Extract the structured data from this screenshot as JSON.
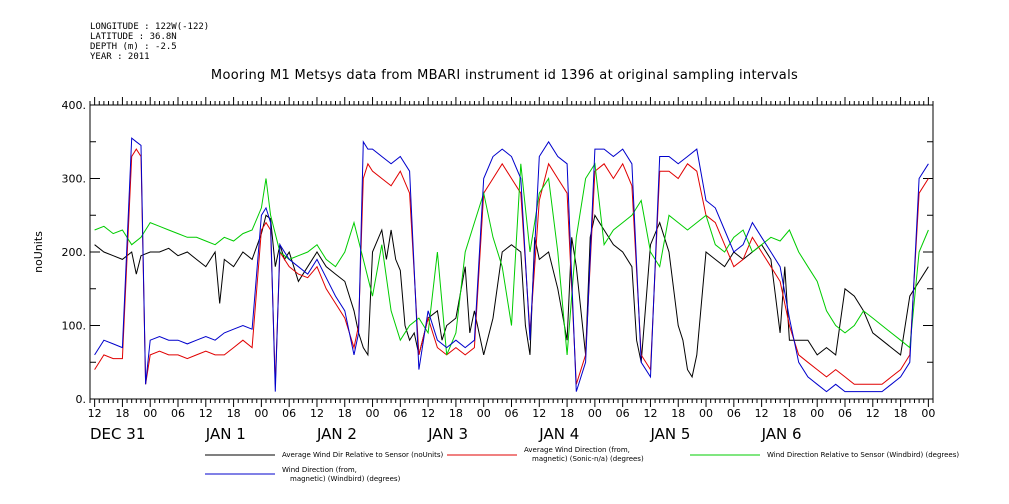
{
  "header": {
    "longitude": "LONGITUDE : 122W(-122)",
    "latitude": "LATITUDE : 36.8N",
    "depth": "DEPTH (m) : -2.5",
    "year": "YEAR : 2011"
  },
  "chart_data": {
    "type": "line",
    "title": "Mooring M1 Metsys data from MBARI instrument id 1396 at original sampling intervals",
    "ylabel": "noUnits",
    "ylim": [
      0,
      400
    ],
    "yticks": [
      0,
      100,
      200,
      300,
      400
    ],
    "ytick_labels": [
      "0.",
      "100.",
      "200.",
      "300.",
      "400."
    ],
    "xlim": [
      11,
      193
    ],
    "xticks": [
      12,
      18,
      24,
      30,
      36,
      42,
      48,
      54,
      60,
      66,
      72,
      78,
      84,
      90,
      96,
      102,
      108,
      114,
      120,
      126,
      132,
      138,
      144,
      150,
      156,
      162,
      168,
      174,
      180,
      186,
      192
    ],
    "xtick_labels": [
      "12",
      "18",
      "00",
      "06",
      "12",
      "18",
      "00",
      "06",
      "12",
      "18",
      "00",
      "06",
      "12",
      "18",
      "00",
      "06",
      "12",
      "18",
      "00",
      "06",
      "12",
      "18",
      "00",
      "06",
      "12",
      "18",
      "00",
      "06",
      "12",
      "18",
      "00"
    ],
    "date_labels": [
      {
        "x": 11,
        "text": "DEC 31"
      },
      {
        "x": 36,
        "text": "JAN  1"
      },
      {
        "x": 60,
        "text": "JAN  2"
      },
      {
        "x": 84,
        "text": "JAN  3"
      },
      {
        "x": 108,
        "text": "JAN  4"
      },
      {
        "x": 132,
        "text": "JAN  5"
      },
      {
        "x": 156,
        "text": "JAN  6"
      }
    ],
    "x_units": "hours since DEC 31 00:00",
    "series": [
      {
        "name": "Average Wind Dir Relative to Sensor (noUnits)",
        "color": "#000000",
        "x": [
          12,
          14,
          16,
          18,
          20,
          21,
          22,
          24,
          26,
          28,
          30,
          32,
          34,
          36,
          38,
          39,
          40,
          42,
          44,
          46,
          48,
          49,
          50,
          51,
          52,
          53,
          54,
          56,
          58,
          60,
          62,
          64,
          66,
          68,
          69,
          70,
          71,
          72,
          74,
          75,
          76,
          77,
          78,
          79,
          80,
          81,
          82,
          84,
          86,
          87,
          88,
          90,
          92,
          93,
          94,
          96,
          98,
          100,
          102,
          104,
          105,
          106,
          107,
          108,
          110,
          112,
          114,
          115,
          116,
          118,
          119,
          120,
          122,
          124,
          126,
          128,
          129,
          130,
          132,
          134,
          136,
          138,
          139,
          140,
          141,
          142,
          144,
          146,
          148,
          150,
          152,
          154,
          156,
          158,
          159,
          160,
          161,
          162,
          164,
          166,
          168,
          170,
          172,
          174,
          176,
          178,
          180,
          182,
          184,
          186,
          188,
          190,
          192
        ],
        "y": [
          210,
          200,
          195,
          190,
          200,
          170,
          195,
          200,
          200,
          205,
          195,
          200,
          190,
          180,
          200,
          130,
          190,
          180,
          200,
          190,
          225,
          250,
          245,
          180,
          210,
          190,
          200,
          160,
          180,
          200,
          180,
          170,
          160,
          120,
          90,
          70,
          60,
          200,
          230,
          190,
          230,
          190,
          175,
          100,
          80,
          90,
          60,
          110,
          120,
          80,
          100,
          110,
          180,
          90,
          120,
          60,
          110,
          200,
          210,
          200,
          100,
          60,
          220,
          190,
          200,
          150,
          80,
          220,
          180,
          60,
          220,
          250,
          230,
          210,
          200,
          180,
          80,
          50,
          210,
          240,
          200,
          100,
          80,
          40,
          30,
          60,
          200,
          190,
          180,
          200,
          190,
          200,
          210,
          190,
          140,
          90,
          180,
          80,
          80,
          80,
          60,
          70,
          60,
          150,
          140,
          120,
          90,
          80,
          70,
          60,
          140,
          160,
          180
        ]
      },
      {
        "name": "Average Wind Direction (from, magnetic) (Sonic-n/a) (degrees)",
        "color": "#e00000",
        "x": [
          12,
          14,
          16,
          18,
          20,
          21,
          22,
          23,
          24,
          26,
          28,
          30,
          32,
          34,
          36,
          38,
          40,
          42,
          44,
          46,
          48,
          49,
          50,
          51,
          52,
          53,
          54,
          56,
          58,
          60,
          62,
          64,
          66,
          68,
          69,
          70,
          71,
          72,
          74,
          76,
          78,
          80,
          82,
          84,
          86,
          88,
          90,
          92,
          94,
          96,
          98,
          100,
          102,
          104,
          106,
          108,
          110,
          112,
          114,
          116,
          118,
          120,
          122,
          124,
          126,
          128,
          130,
          132,
          134,
          136,
          138,
          140,
          142,
          144,
          146,
          148,
          150,
          152,
          154,
          156,
          158,
          160,
          162,
          164,
          166,
          168,
          170,
          172,
          174,
          176,
          178,
          180,
          182,
          184,
          186,
          188,
          190,
          192
        ],
        "y": [
          40,
          60,
          55,
          55,
          330,
          340,
          330,
          20,
          60,
          65,
          60,
          60,
          55,
          60,
          65,
          60,
          60,
          70,
          80,
          70,
          230,
          240,
          230,
          20,
          200,
          190,
          180,
          170,
          165,
          180,
          150,
          130,
          110,
          70,
          100,
          300,
          320,
          310,
          300,
          290,
          310,
          280,
          60,
          110,
          70,
          60,
          70,
          60,
          70,
          280,
          300,
          320,
          300,
          280,
          90,
          270,
          320,
          300,
          280,
          20,
          60,
          310,
          320,
          300,
          320,
          290,
          60,
          40,
          310,
          310,
          300,
          320,
          310,
          250,
          240,
          210,
          180,
          190,
          220,
          200,
          180,
          160,
          100,
          60,
          50,
          40,
          30,
          40,
          30,
          20,
          20,
          20,
          20,
          30,
          40,
          60,
          280,
          300
        ]
      },
      {
        "name": "Wind Direction Relative to Sensor (Windbird) (degrees)",
        "color": "#00cc00",
        "x": [
          12,
          14,
          16,
          18,
          20,
          22,
          24,
          26,
          28,
          30,
          32,
          34,
          36,
          38,
          40,
          42,
          44,
          46,
          48,
          49,
          50,
          52,
          54,
          56,
          58,
          60,
          62,
          64,
          66,
          68,
          70,
          72,
          74,
          76,
          78,
          80,
          82,
          84,
          86,
          88,
          90,
          92,
          94,
          96,
          98,
          100,
          102,
          104,
          106,
          108,
          110,
          112,
          114,
          116,
          118,
          120,
          122,
          124,
          126,
          128,
          130,
          132,
          134,
          136,
          138,
          140,
          142,
          144,
          146,
          148,
          150,
          152,
          154,
          156,
          158,
          160,
          162,
          164,
          166,
          168,
          170,
          172,
          174,
          176,
          178,
          180,
          182,
          184,
          186,
          188,
          190,
          192
        ],
        "y": [
          230,
          235,
          225,
          230,
          210,
          220,
          240,
          235,
          230,
          225,
          220,
          220,
          215,
          210,
          220,
          215,
          225,
          230,
          260,
          300,
          250,
          200,
          190,
          195,
          200,
          210,
          190,
          180,
          200,
          240,
          190,
          140,
          210,
          120,
          80,
          100,
          110,
          90,
          200,
          60,
          90,
          200,
          240,
          280,
          220,
          180,
          100,
          320,
          200,
          280,
          300,
          200,
          60,
          220,
          300,
          320,
          210,
          230,
          240,
          250,
          270,
          200,
          180,
          250,
          240,
          230,
          240,
          250,
          210,
          200,
          220,
          230,
          200,
          210,
          220,
          215,
          230,
          200,
          180,
          160,
          120,
          100,
          90,
          100,
          120,
          110,
          100,
          90,
          80,
          70,
          200,
          230
        ]
      },
      {
        "name": "Wind Direction (from, magnetic) (Windbird) (degrees)",
        "color": "#0000cc",
        "x": [
          12,
          14,
          16,
          18,
          20,
          21,
          22,
          23,
          24,
          26,
          28,
          30,
          32,
          34,
          36,
          38,
          40,
          42,
          44,
          46,
          48,
          49,
          50,
          51,
          52,
          53,
          54,
          56,
          58,
          60,
          62,
          64,
          66,
          68,
          69,
          70,
          71,
          72,
          74,
          76,
          78,
          80,
          82,
          84,
          86,
          88,
          90,
          92,
          94,
          96,
          98,
          100,
          102,
          104,
          106,
          108,
          110,
          112,
          114,
          116,
          118,
          120,
          122,
          124,
          126,
          128,
          130,
          132,
          134,
          136,
          138,
          140,
          142,
          144,
          146,
          148,
          150,
          152,
          154,
          156,
          158,
          160,
          162,
          164,
          166,
          168,
          170,
          172,
          174,
          176,
          178,
          180,
          182,
          184,
          186,
          188,
          190,
          192
        ],
        "y": [
          60,
          80,
          75,
          70,
          355,
          350,
          345,
          20,
          80,
          85,
          80,
          80,
          75,
          80,
          85,
          80,
          90,
          95,
          100,
          95,
          250,
          260,
          240,
          10,
          210,
          200,
          190,
          180,
          170,
          190,
          165,
          140,
          120,
          60,
          90,
          350,
          340,
          340,
          330,
          320,
          330,
          310,
          40,
          120,
          80,
          70,
          80,
          70,
          80,
          300,
          330,
          340,
          330,
          300,
          80,
          330,
          350,
          330,
          320,
          10,
          50,
          340,
          340,
          330,
          340,
          320,
          50,
          30,
          330,
          330,
          320,
          330,
          340,
          270,
          260,
          230,
          200,
          210,
          240,
          220,
          200,
          180,
          110,
          50,
          30,
          20,
          10,
          20,
          10,
          10,
          10,
          10,
          10,
          20,
          30,
          50,
          300,
          320
        ]
      }
    ]
  }
}
